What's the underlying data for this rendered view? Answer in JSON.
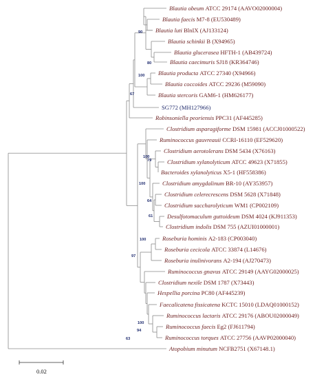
{
  "taxa": [
    {
      "species": "Blautia obeum",
      "strain": "ATCC 29174",
      "accession": "(AAVO02000004)"
    },
    {
      "species": "Blautia faecis",
      "strain": "M7-8",
      "accession": "(EU530489)"
    },
    {
      "species": "Blautia luti",
      "strain": "BlnIX",
      "accession": "(AJ133124)"
    },
    {
      "species": "Blautia schinkii",
      "strain": "B",
      "accession": "(X94965)"
    },
    {
      "species": "Blautia glucerasea",
      "strain": "HFTH-1",
      "accession": "(AB439724)"
    },
    {
      "species": "Blautia caecimuris",
      "strain": "SJ18",
      "accession": "(KR364746)"
    },
    {
      "species": "Blautia producta",
      "strain": "ATCC 27340",
      "accession": "(X94966)"
    },
    {
      "species": "Blautia coccoides",
      "strain": "ATCC 29236",
      "accession": "(M59090)"
    },
    {
      "species": "Blautia stercoris",
      "strain": "GAM6-1",
      "accession": "(HM626177)"
    },
    {
      "species": "",
      "strain": "SG772",
      "accession": "(MH127966)"
    },
    {
      "species": "Robinsoniella peoriensis",
      "strain": "PPC31",
      "accession": "(AF445285)"
    },
    {
      "species": "Clostridium asparagiforme",
      "strain": "DSM 15981",
      "accession": "(ACCJ01000522)"
    },
    {
      "species": "Ruminococcus gauvreauii",
      "strain": "CCRI-16110",
      "accession": "(EF529620)"
    },
    {
      "species": "Clostridium aerotolerans",
      "strain": "DSM 5434",
      "accession": "(X76163)"
    },
    {
      "species": "Clostridium xylanolyticum",
      "strain": "ATCC 49623",
      "accession": "(X71855)"
    },
    {
      "species": "Bacteroides xylanolyticus",
      "strain": "X5-1",
      "accession": "(HF558386)"
    },
    {
      "species": "Clostridium amygdalinum",
      "strain": "BR-10",
      "accession": "(AY353957)"
    },
    {
      "species": "Clostridium celerecrescens",
      "strain": "DSM 5628",
      "accession": "(X71848)"
    },
    {
      "species": "Clostridium saccharolyticum",
      "strain": "WM1",
      "accession": "(CP002109)"
    },
    {
      "species": "Desulfotomaculum guttoideum",
      "strain": "DSM 4024",
      "accession": "(KJ911353)"
    },
    {
      "species": "Clostridium indolis",
      "strain": "DSM 755",
      "accession": "(AZUI01000001)"
    },
    {
      "species": "Roseburia hominis",
      "strain": "A2-183",
      "accession": "(CP003040)"
    },
    {
      "species": "Roseburia cecicola",
      "strain": "ATCC 33874",
      "accession": "(L14676)"
    },
    {
      "species": "Roseburia inulinivorans",
      "strain": "A2-194",
      "accession": "(AJ270473)"
    },
    {
      "species": "Ruminococcus gnavus",
      "strain": "ATCC 29149",
      "accession": "(AAYG02000025)"
    },
    {
      "species": "Clostridium nexile",
      "strain": "DSM 1787",
      "accession": "(X73443)"
    },
    {
      "species": "Hespellia porcina",
      "strain": "PC80",
      "accession": "(AF445239)"
    },
    {
      "species": "Faecalicatena fissicatena",
      "strain": "KCTC 15010",
      "accession": "(LDAQ01000152)"
    },
    {
      "species": "Ruminococcus lactaris",
      "strain": "ATCC 29176",
      "accession": "(ABOU02000049)"
    },
    {
      "species": "Ruminococcus faecis",
      "strain": "Eg2",
      "accession": "(FJ611794)"
    },
    {
      "species": "Ruminococcus torques",
      "strain": "ATCC 27756",
      "accession": "(AAVP02000040)"
    },
    {
      "species": "Atopobium minutum",
      "strain": "NCFB2751",
      "accession": "(X67148.1)"
    }
  ],
  "bootstrap": [
    "90",
    "80",
    "100",
    "67",
    "100",
    "79",
    "100",
    "64",
    "61",
    "100",
    "97",
    "100",
    "63",
    "94"
  ],
  "scale_bar": {
    "label": "0.02"
  },
  "colors": {
    "taxon_text": "#6b1e1e",
    "isolate_text": "#1f2a6b",
    "bootstrap_text": "#1d2a6e",
    "branch": "#8a8a8a"
  }
}
